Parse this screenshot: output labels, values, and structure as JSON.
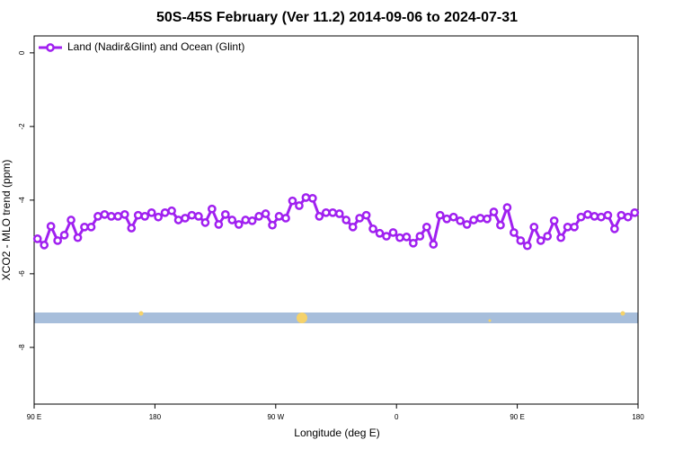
{
  "chart_data": {
    "type": "line",
    "title": "50S-45S February (Ver 11.2)   2014-09-06 to 2024-07-31",
    "xlabel": "Longitude (deg E)",
    "ylabel": "XCO2 - MLO trend (ppm)",
    "xlim": [
      90,
      540
    ],
    "ylim": [
      -9.54,
      0.46
    ],
    "xticks": [
      {
        "value": 90,
        "label": "90 E"
      },
      {
        "value": 180,
        "label": "180"
      },
      {
        "value": 270,
        "label": "90 W"
      },
      {
        "value": 360,
        "label": "0"
      },
      {
        "value": 450,
        "label": "90 E"
      },
      {
        "value": 540,
        "label": "180"
      }
    ],
    "yticks": [
      0,
      -2,
      -4,
      -6,
      -8
    ],
    "legend": "top-left",
    "x": [
      92.5,
      97.5,
      102.5,
      107.5,
      112.5,
      117.5,
      122.5,
      127.5,
      132.5,
      137.5,
      142.5,
      147.5,
      152.5,
      157.5,
      162.5,
      167.5,
      172.5,
      177.5,
      182.5,
      187.5,
      192.5,
      197.5,
      202.5,
      207.5,
      212.5,
      217.5,
      222.5,
      227.5,
      232.5,
      237.5,
      242.5,
      247.5,
      252.5,
      257.5,
      262.5,
      267.5,
      272.5,
      277.5,
      282.5,
      287.5,
      292.5,
      297.5,
      302.5,
      307.5,
      312.5,
      317.5,
      322.5,
      327.5,
      332.5,
      337.5,
      342.5,
      347.5,
      352.5,
      357.5,
      362.5,
      367.5,
      372.5,
      377.5,
      382.5,
      387.5,
      392.5,
      397.5,
      402.5,
      407.5,
      412.5,
      417.5,
      422.5,
      427.5,
      432.5,
      437.5,
      442.5,
      447.5,
      452.5,
      457.5,
      462.5,
      467.5,
      472.5,
      477.5,
      482.5,
      487.5,
      492.5,
      497.5,
      502.5,
      507.5,
      512.5,
      517.5,
      522.5,
      527.5,
      532.5,
      537.5
    ],
    "series": [
      {
        "name": "Land (Nadir&Glint) and Ocean (Glint)",
        "color": "#a020f0",
        "values": [
          -5.05,
          -5.22,
          -4.71,
          -5.1,
          -4.95,
          -4.54,
          -5.02,
          -4.73,
          -4.73,
          -4.44,
          -4.39,
          -4.44,
          -4.44,
          -4.39,
          -4.76,
          -4.41,
          -4.44,
          -4.34,
          -4.46,
          -4.34,
          -4.29,
          -4.54,
          -4.49,
          -4.41,
          -4.44,
          -4.61,
          -4.24,
          -4.66,
          -4.39,
          -4.54,
          -4.66,
          -4.54,
          -4.56,
          -4.44,
          -4.37,
          -4.68,
          -4.44,
          -4.49,
          -4.02,
          -4.15,
          -3.93,
          -3.95,
          -4.44,
          -4.34,
          -4.34,
          -4.37,
          -4.54,
          -4.73,
          -4.49,
          -4.41,
          -4.78,
          -4.9,
          -4.98,
          -4.88,
          -5.02,
          -5.0,
          -5.17,
          -4.98,
          -4.73,
          -5.2,
          -4.41,
          -4.51,
          -4.46,
          -4.56,
          -4.66,
          -4.54,
          -4.49,
          -4.51,
          -4.32,
          -4.68,
          -4.2,
          -4.88,
          -5.1,
          -5.24,
          -4.73,
          -5.1,
          -4.98,
          -4.56,
          -5.02,
          -4.73,
          -4.73,
          -4.46,
          -4.39,
          -4.44,
          -4.46,
          -4.41,
          -4.78,
          -4.41,
          -4.46,
          -4.34
        ]
      }
    ]
  }
}
